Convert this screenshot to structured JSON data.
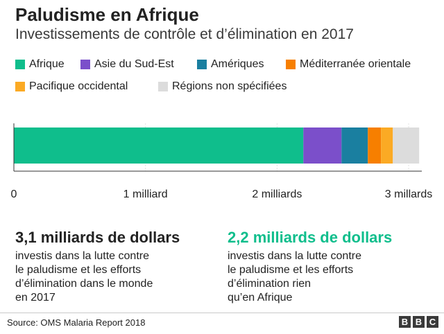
{
  "header": {
    "title": "Paludisme en Afrique",
    "subtitle": "Investissements de contrôle et d’élimination en 2017"
  },
  "chart_data": {
    "type": "bar",
    "orientation": "horizontal",
    "stacked": true,
    "title": "Paludisme en Afrique",
    "subtitle": "Investissements de contrôle et d’élimination en 2017",
    "xlim": [
      0,
      3.1
    ],
    "xticks": [
      {
        "value": 0,
        "label": "0"
      },
      {
        "value": 1,
        "label": "1 milliard"
      },
      {
        "value": 2,
        "label": "2 milliards"
      },
      {
        "value": 3,
        "label": "3 millards"
      }
    ],
    "legend_placement": "top",
    "grid": true,
    "series": [
      {
        "name": "Afrique",
        "value": 2.2,
        "color": "#0fbe8c"
      },
      {
        "name": "Asie du Sud-Est",
        "value": 0.29,
        "color": "#7b4fca"
      },
      {
        "name": "Amériques",
        "value": 0.2,
        "color": "#1a7fa0"
      },
      {
        "name": "Méditerranée orientale",
        "value": 0.1,
        "color": "#f77f00"
      },
      {
        "name": "Pacifique occidental",
        "value": 0.09,
        "color": "#fbaa24"
      },
      {
        "name": "Régions non spécifiées",
        "value": 0.2,
        "color": "#dcdcdc"
      }
    ]
  },
  "stats": {
    "left": {
      "value": "3,1 milliards de dollars",
      "lines": [
        "investis dans la lutte contre",
        "le paludisme et les efforts",
        "d’élimination dans le monde",
        "en 2017"
      ],
      "color": "#222222"
    },
    "right": {
      "value": "2,2 milliards de dollars",
      "lines": [
        "investis dans la lutte contre",
        "le paludisme et les efforts",
        "d’élimination rien",
        "qu’en Afrique"
      ],
      "color": "#0fbe8c"
    }
  },
  "footer": {
    "source": "Source: OMS Malaria Report 2018",
    "logo": [
      "B",
      "B",
      "C"
    ]
  }
}
